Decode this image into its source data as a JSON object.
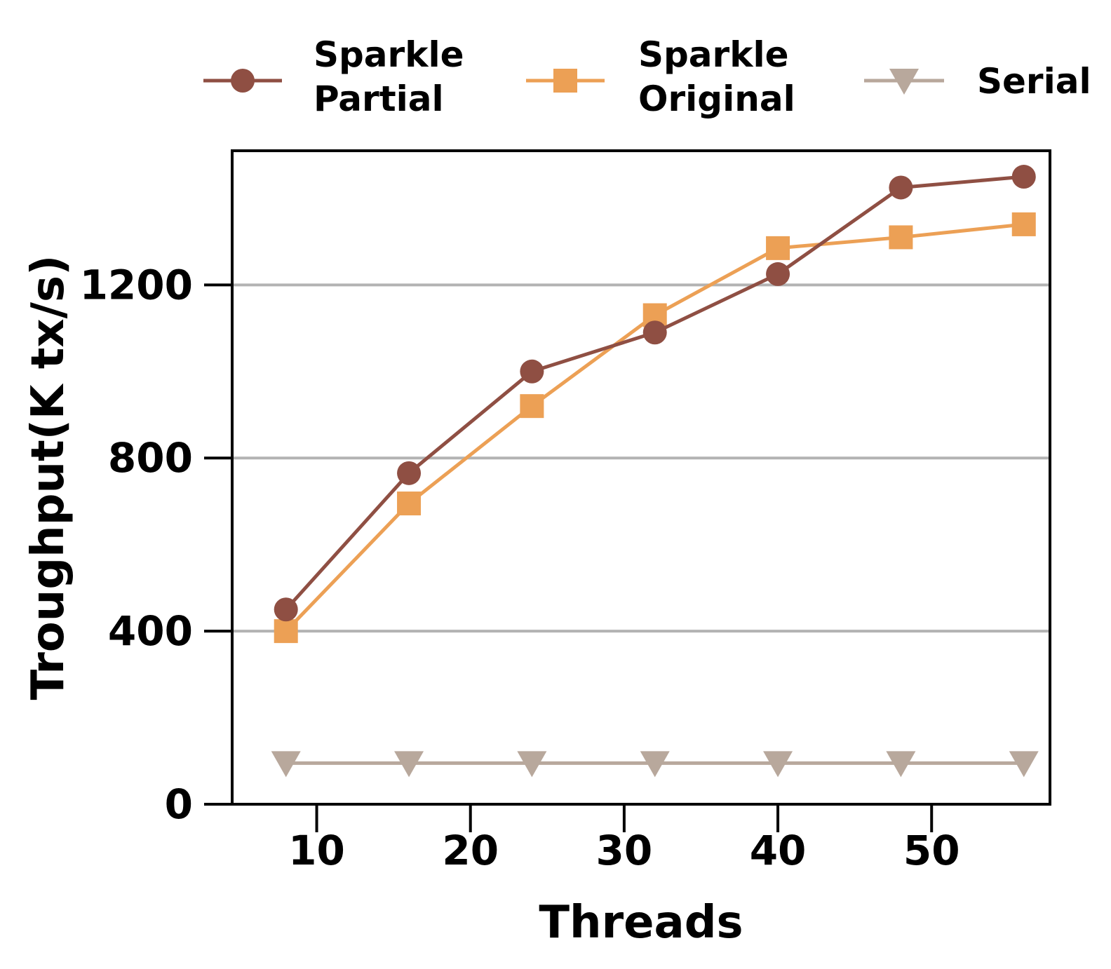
{
  "chart_data": {
    "type": "line",
    "xlabel": "Threads",
    "ylabel": "Troughput(K tx/s)",
    "xlim": [
      4.5,
      57.7
    ],
    "ylim": [
      0,
      1510
    ],
    "x_ticks": [
      10,
      20,
      30,
      40,
      50
    ],
    "y_ticks": [
      0,
      400,
      800,
      1200
    ],
    "x_tick_labels": [
      "10",
      "20",
      "30",
      "40",
      "50"
    ],
    "y_tick_labels": [
      "0",
      "400",
      "800",
      "1200"
    ],
    "grid": "horizontal at 400, 800, 1200",
    "legend_position": "top, above plot",
    "series": [
      {
        "name": "Sparkle Partial",
        "legend_lines": [
          "Sparkle",
          "Partial"
        ],
        "marker": "circle",
        "color": "#8f4f43",
        "x": [
          8,
          16,
          24,
          32,
          40,
          48,
          56
        ],
        "y": [
          450,
          765,
          1000,
          1090,
          1225,
          1425,
          1450
        ]
      },
      {
        "name": "Sparkle Original",
        "legend_lines": [
          "Sparkle",
          "Original"
        ],
        "marker": "square",
        "color": "#eca055",
        "x": [
          8,
          16,
          24,
          32,
          40,
          48,
          56
        ],
        "y": [
          400,
          695,
          920,
          1130,
          1285,
          1310,
          1340
        ]
      },
      {
        "name": "Serial",
        "legend_lines": [
          "Serial"
        ],
        "marker": "triangle-down",
        "color": "#b8a89c",
        "x": [
          8,
          16,
          24,
          32,
          40,
          48,
          56
        ],
        "y": [
          95,
          95,
          95,
          95,
          95,
          95,
          95
        ]
      }
    ]
  }
}
